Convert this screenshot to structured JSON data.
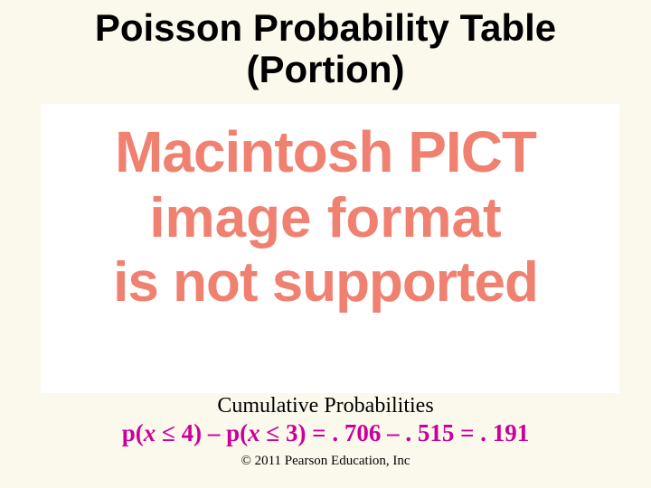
{
  "title": {
    "line1": "Poisson Probability Table",
    "line2": "(Portion)"
  },
  "pict_message": {
    "line1": "Macintosh PICT",
    "line2": "image format",
    "line3": "is not supported",
    "text_color": "#f08070",
    "background": "#ffffff"
  },
  "cumulative_label": "Cumulative Probabilities",
  "formula": {
    "prefix1": "p(",
    "var1": "x",
    "cond1": " ≤ 4) – p(",
    "var2": "x",
    "cond2": " ≤ 3) = . 706 – . 515 = . 191",
    "color": "#cc0099"
  },
  "copyright": "© 2011 Pearson Education, Inc",
  "slide_background": "#fbf9ec"
}
